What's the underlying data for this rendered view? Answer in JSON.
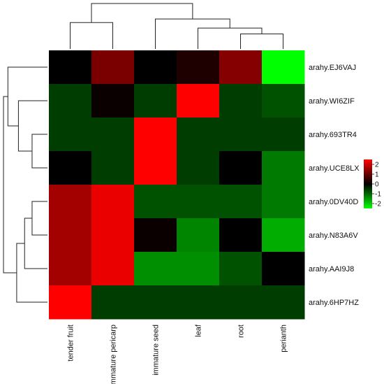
{
  "chart_data": {
    "type": "heatmap",
    "title": "",
    "columns": [
      "tender fruit",
      "immature pericarp",
      "immature seed",
      "leaf",
      "root",
      "perianth"
    ],
    "rows": [
      "arahy.EJ6VAJ",
      "arahy.WI6ZIF",
      "arahy.693TR4",
      "arahy.UCE8LX",
      "arahy.0DV40D",
      "arahy.N83A6V",
      "arahy.AAI9J8",
      "arahy.6HP7HZ"
    ],
    "values": [
      [
        0.0,
        1.2,
        0.0,
        0.3,
        1.3,
        -2.5
      ],
      [
        -0.6,
        0.1,
        -0.6,
        2.5,
        -0.6,
        -0.8
      ],
      [
        -0.6,
        -0.6,
        2.5,
        -0.6,
        -0.6,
        -0.6
      ],
      [
        0.0,
        -0.6,
        2.5,
        -0.6,
        0.0,
        -1.2
      ],
      [
        1.6,
        2.3,
        -0.8,
        -0.8,
        -0.8,
        -1.2
      ],
      [
        1.6,
        2.3,
        0.1,
        -1.3,
        0.0,
        -1.7
      ],
      [
        1.6,
        2.3,
        -1.4,
        -1.4,
        -0.8,
        0.0
      ],
      [
        2.5,
        -0.6,
        -0.6,
        -0.6,
        -0.6,
        -0.6
      ]
    ],
    "colorscale": {
      "ticks": [
        "2",
        "1",
        "0",
        "-1",
        "-2"
      ],
      "tick_values": [
        2,
        1,
        0,
        -1,
        -2
      ],
      "range": [
        -2.5,
        2.5
      ],
      "low_color": "#00ff00",
      "mid_color": "#000000",
      "high_color": "#ff0000"
    },
    "legend_position": "right",
    "grid": false,
    "column_dendrogram": true,
    "row_dendrogram": true
  }
}
